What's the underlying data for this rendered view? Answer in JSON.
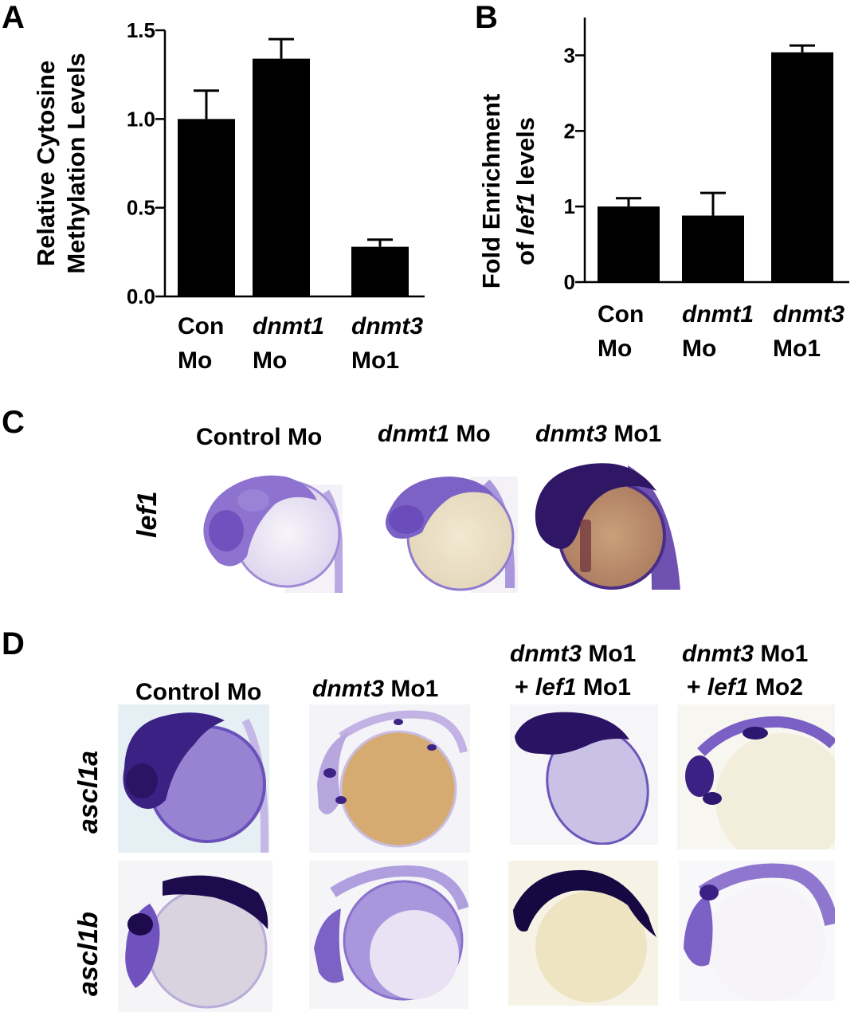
{
  "panels": {
    "a": "A",
    "b": "B",
    "c": "C",
    "d": "D"
  },
  "chart_data": [
    {
      "type": "bar",
      "ylabel_line1": "Relative Cytosine",
      "ylabel_line2": "Methylation Levels",
      "ylim": [
        0,
        1.5
      ],
      "yticks": [
        "0.0",
        "0.5",
        "1.0",
        "1.5"
      ],
      "ytick_values": [
        0,
        0.5,
        1.0,
        1.5
      ],
      "categories": [
        {
          "italic": "",
          "line1_rest": "Con",
          "line2": "Mo"
        },
        {
          "italic": "dnmt1",
          "line1_rest": "",
          "line2": "Mo"
        },
        {
          "italic": "dnmt3",
          "line1_rest": "",
          "line2": "Mo1"
        }
      ],
      "values": [
        1.0,
        1.34,
        0.28
      ],
      "errors": [
        0.16,
        0.11,
        0.04
      ]
    },
    {
      "type": "bar",
      "ylabel_line1": "Fold Enrichment",
      "ylabel_line2_pre": "of ",
      "ylabel_line2_it": "lef1",
      "ylabel_line2_post": " levels",
      "ylim": [
        0,
        3.5
      ],
      "yticks": [
        "0",
        "1",
        "2",
        "3"
      ],
      "ytick_values": [
        0,
        1,
        2,
        3
      ],
      "categories": [
        {
          "italic": "",
          "line1_rest": "Con",
          "line2": "Mo"
        },
        {
          "italic": "dnmt1",
          "line1_rest": "",
          "line2": "Mo"
        },
        {
          "italic": "dnmt3",
          "line1_rest": "",
          "line2": "Mo1"
        }
      ],
      "values": [
        1.0,
        0.88,
        3.04
      ],
      "errors": [
        0.11,
        0.3,
        0.09
      ]
    }
  ],
  "panel_c": {
    "col1": "Control Mo",
    "col2_it": "dnmt1",
    "col2_rest": " Mo",
    "col3_it": "dnmt3",
    "col3_rest": " Mo1",
    "row": "lef1"
  },
  "panel_d": {
    "col1": "Control Mo",
    "col2_it": "dnmt3",
    "col2_rest": " Mo1",
    "col3_l1_it": "dnmt3",
    "col3_l1_rest": " Mo1",
    "col3_l2_pre": "+ ",
    "col3_l2_it": "lef1",
    "col3_l2_rest": " Mo1",
    "col4_l1_it": "dnmt3",
    "col4_l1_rest": " Mo1",
    "col4_l2_pre": "+ ",
    "col4_l2_it": "lef1",
    "col4_l2_rest": " Mo2",
    "row1": "ascl1a",
    "row2": "ascl1b"
  },
  "colors": {
    "bar": "#000000",
    "stain_dark": "#2a1060",
    "stain_mid": "#5b3ba6",
    "stain_light": "#b7a6e0",
    "yolk_white": "#f1eef6",
    "yolk_orange": "#d8b07a",
    "yolk_pale": "#efe6c8"
  }
}
